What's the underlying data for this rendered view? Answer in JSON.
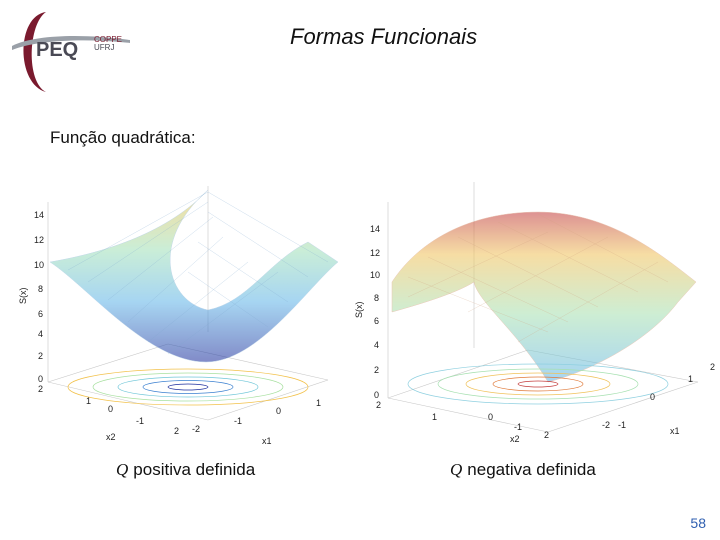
{
  "logo": {
    "main": "PEQ",
    "top": "COPPE",
    "bottom": "UFRJ"
  },
  "title": "Formas Funcionais",
  "subtitle": "Função quadrática:",
  "plots": [
    {
      "ylabel": "S(x)",
      "xlabel": "x1",
      "zlabel": "x2",
      "yticks": [
        "14",
        "12",
        "10",
        "8",
        "6",
        "4",
        "2",
        "0"
      ],
      "x1ticks": [
        "-2",
        "-1",
        "0",
        "1"
      ],
      "x2ticks": [
        "2",
        "1",
        "0",
        "-1",
        "2"
      ]
    },
    {
      "ylabel": "S(x)",
      "xlabel": "x1",
      "zlabel": "x2",
      "yticks": [
        "14",
        "12",
        "10",
        "8",
        "6",
        "4",
        "2",
        "0"
      ],
      "x1ticks": [
        "-2",
        "-1",
        "0",
        "1",
        "2"
      ],
      "x2ticks": [
        "2",
        "1",
        "0",
        "-1",
        "2"
      ]
    }
  ],
  "captions": {
    "left": {
      "symbol": "Q",
      "text": "positiva definida"
    },
    "right": {
      "symbol": "Q",
      "text": "negativa definida"
    }
  },
  "page_number": "58"
}
